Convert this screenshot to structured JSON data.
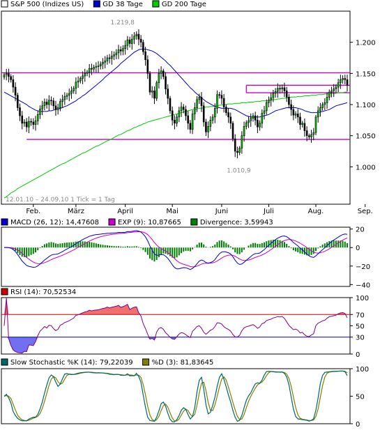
{
  "chart_data": [
    {
      "type": "candlestick",
      "legend": [
        {
          "label": "S&P 500 (Indizes US)",
          "color": "#ffffff"
        },
        {
          "label": "GD 38 Tage",
          "color": "#0000cc"
        },
        {
          "label": "GD 200 Tage",
          "color": "#00cc00"
        }
      ],
      "ylim": [
        0.94,
        1.25
      ],
      "yticks": [
        "1.200",
        "1.150",
        "1.100",
        "1.050",
        "1.000"
      ],
      "ytick_values": [
        1.2,
        1.15,
        1.1,
        1.05,
        1.0
      ],
      "xticks": [
        "Feb.",
        "März",
        "April",
        "Mai",
        "Juni",
        "Juli",
        "Aug.",
        "Sep."
      ],
      "range_label": "12.01.10 – 24.09.10   1 Tick = 1 Tag",
      "annotation_high": "1.219,8",
      "annotation_low": "1.010,9",
      "high_value": 1.2198,
      "low_value": 1.0109,
      "hlines": [
        1.151,
        1.131,
        1.119,
        1.044
      ],
      "close": [
        1.148,
        1.15,
        1.145,
        1.14,
        1.128,
        1.115,
        1.095,
        1.082,
        1.07,
        1.072,
        1.064,
        1.073,
        1.072,
        1.068,
        1.074,
        1.084,
        1.093,
        1.098,
        1.104,
        1.1,
        1.107,
        1.106,
        1.098,
        1.092,
        1.095,
        1.105,
        1.108,
        1.113,
        1.115,
        1.118,
        1.122,
        1.126,
        1.136,
        1.138,
        1.142,
        1.146,
        1.15,
        1.152,
        1.158,
        1.157,
        1.16,
        1.161,
        1.162,
        1.165,
        1.168,
        1.17,
        1.175,
        1.174,
        1.178,
        1.18,
        1.183,
        1.188,
        1.186,
        1.19,
        1.195,
        1.204,
        1.198,
        1.205,
        1.21,
        1.213,
        1.205,
        1.2,
        1.185,
        1.172,
        1.15,
        1.12,
        1.122,
        1.11,
        1.135,
        1.15,
        1.154,
        1.145,
        1.125,
        1.11,
        1.09,
        1.075,
        1.07,
        1.08,
        1.09,
        1.096,
        1.092,
        1.082,
        1.07,
        1.06,
        1.085,
        1.095,
        1.108,
        1.112,
        1.098,
        1.072,
        1.056,
        1.065,
        1.075,
        1.08,
        1.094,
        1.116,
        1.115,
        1.11,
        1.096,
        1.087,
        1.08,
        1.07,
        1.045,
        1.025,
        1.023,
        1.03,
        1.05,
        1.065,
        1.071,
        1.074,
        1.078,
        1.082,
        1.075,
        1.064,
        1.07,
        1.086,
        1.09,
        1.103,
        1.107,
        1.111,
        1.118,
        1.121,
        1.126,
        1.125,
        1.127,
        1.122,
        1.112,
        1.1,
        1.092,
        1.083,
        1.085,
        1.08,
        1.068,
        1.07,
        1.058,
        1.05,
        1.048,
        1.052,
        1.055,
        1.08,
        1.09,
        1.095,
        1.1,
        1.103,
        1.112,
        1.12,
        1.122,
        1.125,
        1.128,
        1.135,
        1.14,
        1.142,
        1.14,
        1.131
      ],
      "sma38": [
        1.12,
        1.118,
        1.116,
        1.114,
        1.112,
        1.11,
        1.108,
        1.106,
        1.104,
        1.102,
        1.1,
        1.097,
        1.095,
        1.093,
        1.091,
        1.09,
        1.089,
        1.089,
        1.089,
        1.089,
        1.09,
        1.09,
        1.091,
        1.092,
        1.093,
        1.094,
        1.095,
        1.097,
        1.098,
        1.1,
        1.102,
        1.104,
        1.106,
        1.109,
        1.111,
        1.114,
        1.116,
        1.119,
        1.122,
        1.125,
        1.128,
        1.131,
        1.134,
        1.137,
        1.14,
        1.144,
        1.147,
        1.15,
        1.153,
        1.156,
        1.159,
        1.162,
        1.166,
        1.169,
        1.172,
        1.175,
        1.178,
        1.181,
        1.184,
        1.186,
        1.188,
        1.189,
        1.189,
        1.189,
        1.188,
        1.187,
        1.186,
        1.184,
        1.182,
        1.179,
        1.176,
        1.173,
        1.17,
        1.166,
        1.163,
        1.159,
        1.155,
        1.151,
        1.147,
        1.143,
        1.139,
        1.135,
        1.131,
        1.127,
        1.124,
        1.12,
        1.117,
        1.114,
        1.111,
        1.108,
        1.105,
        1.103,
        1.101,
        1.099,
        1.097,
        1.096,
        1.095,
        1.094,
        1.094,
        1.094,
        1.094,
        1.094,
        1.093,
        1.092,
        1.09,
        1.088,
        1.086,
        1.084,
        1.082,
        1.081,
        1.08,
        1.08,
        1.08,
        1.08,
        1.08,
        1.081,
        1.082,
        1.083,
        1.084,
        1.086,
        1.088,
        1.09,
        1.091,
        1.092,
        1.093,
        1.094,
        1.095,
        1.095,
        1.095,
        1.095,
        1.095,
        1.094,
        1.093,
        1.092,
        1.09,
        1.089,
        1.088,
        1.087,
        1.087,
        1.087,
        1.087,
        1.088,
        1.089,
        1.09,
        1.091,
        1.092,
        1.094,
        1.096,
        1.098,
        1.099,
        1.1,
        1.101,
        1.102,
        1.103
      ],
      "sma200": [
        0.95,
        0.952,
        0.955,
        0.958,
        0.96,
        0.962,
        0.965,
        0.967,
        0.969,
        0.971,
        0.973,
        0.975,
        0.977,
        0.979,
        0.981,
        0.983,
        0.985,
        0.987,
        0.989,
        0.991,
        0.993,
        0.995,
        0.997,
        0.999,
        1.001,
        1.003,
        1.005,
        1.006,
        1.008,
        1.01,
        1.012,
        1.014,
        1.016,
        1.018,
        1.02,
        1.022,
        1.023,
        1.025,
        1.027,
        1.029,
        1.031,
        1.033,
        1.034,
        1.036,
        1.038,
        1.04,
        1.042,
        1.043,
        1.045,
        1.047,
        1.049,
        1.051,
        1.052,
        1.054,
        1.056,
        1.058,
        1.059,
        1.061,
        1.063,
        1.064,
        1.066,
        1.067,
        1.069,
        1.07,
        1.072,
        1.073,
        1.074,
        1.075,
        1.076,
        1.077,
        1.078,
        1.079,
        1.08,
        1.081,
        1.082,
        1.083,
        1.084,
        1.085,
        1.086,
        1.087,
        1.088,
        1.089,
        1.09,
        1.091,
        1.092,
        1.092,
        1.093,
        1.094,
        1.094,
        1.095,
        1.096,
        1.096,
        1.097,
        1.097,
        1.098,
        1.098,
        1.099,
        1.099,
        1.1,
        1.1,
        1.101,
        1.101,
        1.101,
        1.102,
        1.102,
        1.102,
        1.103,
        1.103,
        1.103,
        1.104,
        1.104,
        1.104,
        1.105,
        1.105,
        1.105,
        1.106,
        1.106,
        1.106,
        1.107,
        1.107,
        1.108,
        1.108,
        1.109,
        1.109,
        1.11,
        1.11,
        1.111,
        1.111,
        1.112,
        1.112,
        1.112,
        1.113,
        1.113,
        1.113,
        1.114,
        1.114,
        1.114,
        1.115,
        1.115,
        1.115,
        1.116,
        1.116,
        1.116,
        1.117,
        1.117,
        1.117,
        1.118,
        1.118,
        1.118,
        1.119,
        1.119,
        1.119,
        1.12,
        1.12
      ]
    },
    {
      "type": "macd",
      "legend": [
        {
          "label": "MACD (26, 12): 14,47608",
          "color": "#0000cc"
        },
        {
          "label": "EXP (9): 10,87665",
          "color": "#cc00cc"
        },
        {
          "label": "Divergence: 3,59943",
          "color": "#008000"
        }
      ],
      "ylim": [
        -42,
        22
      ],
      "yticks": [
        "20",
        "0",
        "−20",
        "−40"
      ],
      "ytick_values": [
        20,
        0,
        -20,
        -40
      ]
    },
    {
      "type": "rsi",
      "legend": [
        {
          "label": "RSI (14): 70,52534",
          "color": "#cc0000"
        }
      ],
      "ylim": [
        0,
        100
      ],
      "yticks": [
        "100",
        "70",
        "50",
        "30",
        "0"
      ],
      "ytick_values": [
        100,
        70,
        50,
        30,
        0
      ],
      "upper": 70,
      "lower": 30
    },
    {
      "type": "stochastic",
      "legend": [
        {
          "label": "Slow Stochastic %K (14): 79,22039",
          "color": "#006666"
        },
        {
          "label": "%D (3): 81,83645",
          "color": "#808000"
        }
      ],
      "ylim": [
        0,
        100
      ],
      "yticks": [
        "100",
        "50",
        "0"
      ],
      "ytick_values": [
        100,
        50,
        0
      ]
    }
  ]
}
